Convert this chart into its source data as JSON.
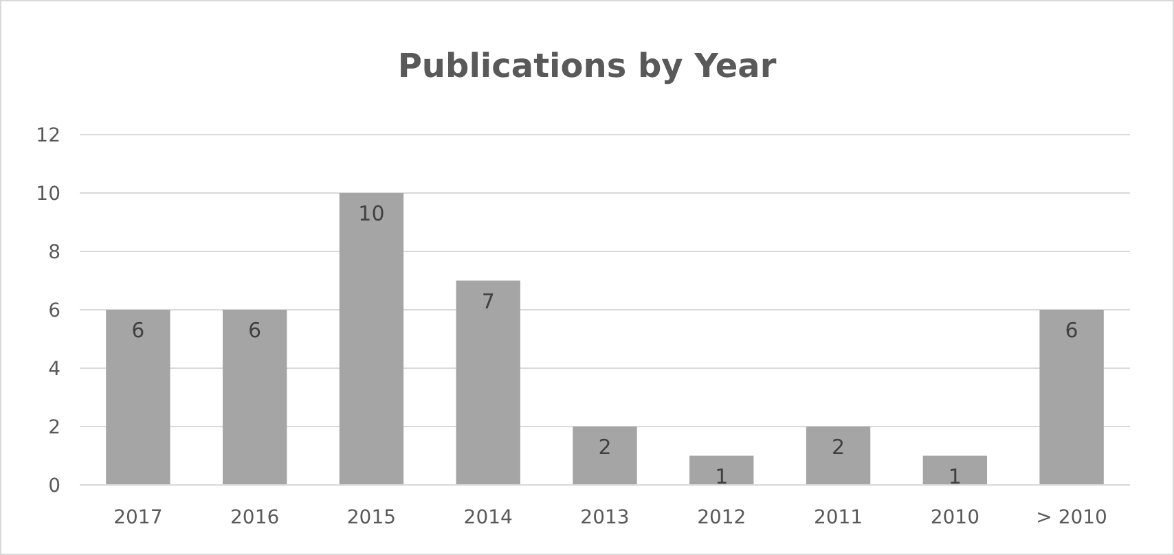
{
  "chart_data": {
    "type": "bar",
    "title": "Publications by Year",
    "categories": [
      "2017",
      "2016",
      "2015",
      "2014",
      "2013",
      "2012",
      "2011",
      "2010",
      "> 2010"
    ],
    "values": [
      6,
      6,
      10,
      7,
      2,
      1,
      2,
      1,
      6
    ],
    "color": "#a5a5a5",
    "ylim": [
      0,
      12
    ],
    "yticks": [
      0,
      2,
      4,
      6,
      8,
      10,
      12
    ],
    "grid": "y",
    "data_labels": true
  }
}
